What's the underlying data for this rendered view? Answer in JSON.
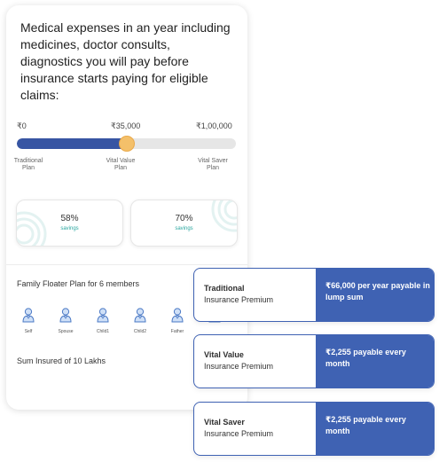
{
  "card": {
    "headline": "Medical expenses in an year including medicines, doctor consults, diagnostics you will pay before insurance starts paying for eligible claims:",
    "slider": {
      "min_label": "₹0",
      "current_label": "₹35,000",
      "max_label": "₹1,00,000",
      "value_fraction": 0.5,
      "plans": [
        {
          "line1": "Traditional",
          "line2": "Plan"
        },
        {
          "line1": "Vital Value",
          "line2": "Plan"
        },
        {
          "line1": "Vital Saver",
          "line2": "Plan"
        }
      ]
    },
    "savings": [
      {
        "percent": "58%",
        "label": "savings"
      },
      {
        "percent": "70%",
        "label": "savings"
      }
    ],
    "floater_title": "Family Floater Plan for 6 members",
    "members": [
      {
        "label": "Self"
      },
      {
        "label": "Spouse"
      },
      {
        "label": "Child1"
      },
      {
        "label": "Child2"
      },
      {
        "label": "Father"
      },
      {
        "label": ""
      }
    ],
    "sum_insured": "Sum Insured of 10 Lakhs"
  },
  "premiums": [
    {
      "name": "Traditional",
      "sub": "Insurance Premium",
      "value": "₹66,000 per year payable in lump sum"
    },
    {
      "name": "Vital Value",
      "sub": "Insurance Premium",
      "value": "₹2,255 payable every month"
    },
    {
      "name": "Vital Saver",
      "sub": "Insurance Premium",
      "value": "₹2,255 payable every month"
    }
  ],
  "colors": {
    "accent": "#3f62b3",
    "slider_fill": "#3755a3",
    "knob": "#f4c06a",
    "savings_text": "#2ba7a0"
  }
}
